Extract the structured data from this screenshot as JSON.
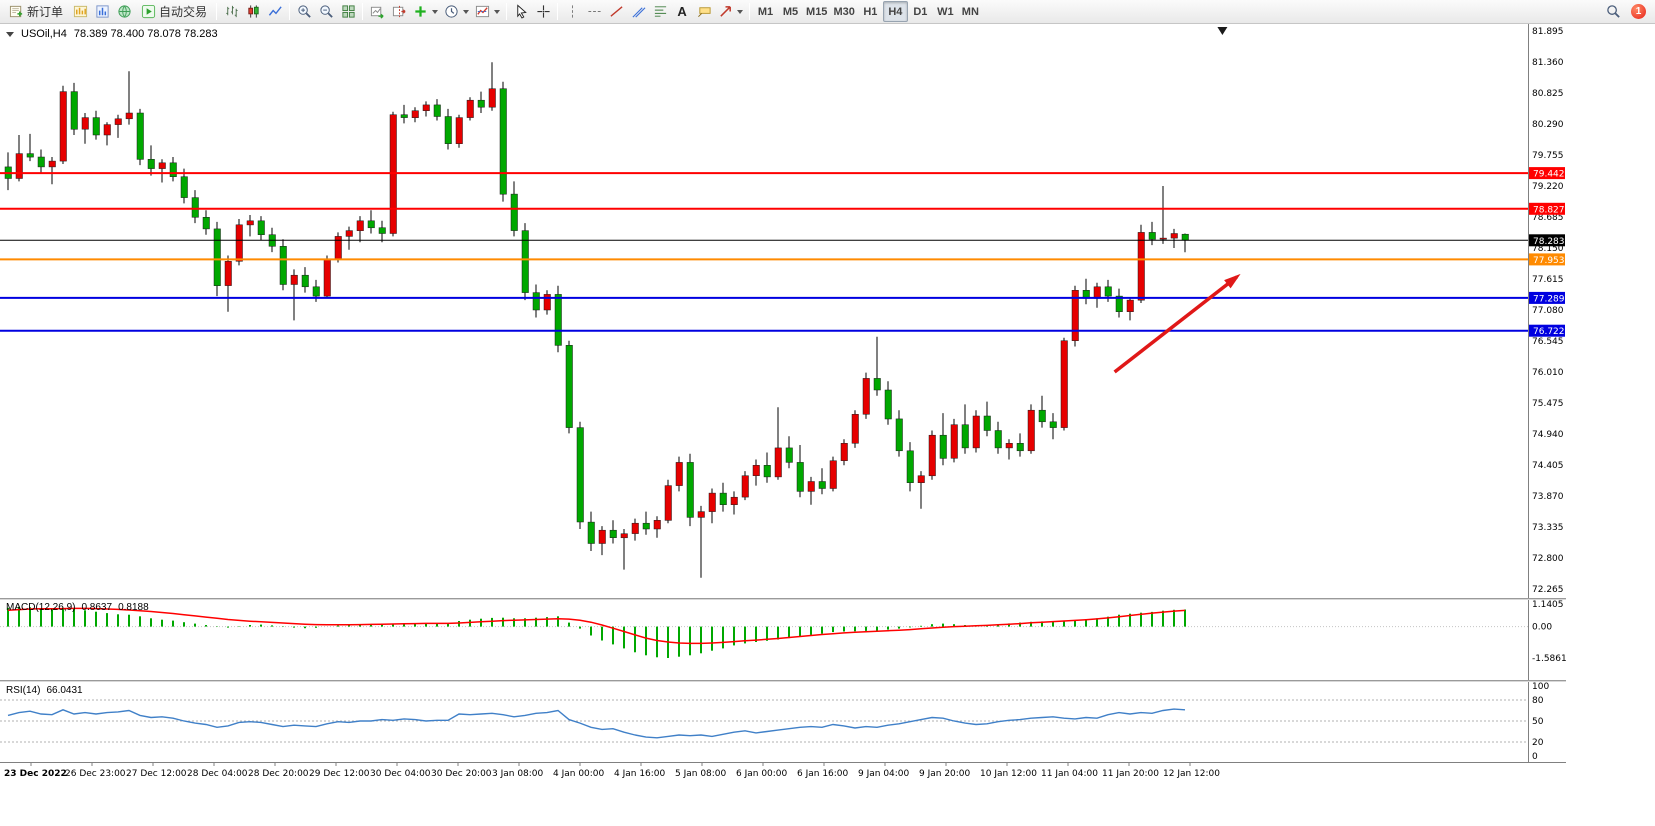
{
  "toolbar": {
    "new_order_label": "新订单",
    "auto_trading_label": "自动交易",
    "text_tool_label": "A",
    "timeframes": [
      "M1",
      "M5",
      "M15",
      "M30",
      "H1",
      "H4",
      "D1",
      "W1",
      "MN"
    ],
    "active_timeframe": "H4",
    "notification_count": "1"
  },
  "chart_header": {
    "symbol_timeframe": "USOil,H4",
    "ohlc_text": "78.389 78.400 78.078 78.283"
  },
  "chart_data": {
    "type": "candlestick",
    "symbol": "USOil",
    "timeframe": "H4",
    "current_bar_ohlc": {
      "open": 78.389,
      "high": 78.4,
      "low": 78.078,
      "close": 78.283
    },
    "colors": {
      "bull": "#e60000",
      "bear": "#00a800",
      "wick": "#000000",
      "macd_histogram": "#00a800",
      "macd_signal": "#ff0000",
      "rsi_line": "#4080c8",
      "line_red": "#ff0000",
      "line_blue": "#0000e0",
      "line_orange": "#ff8a00",
      "current_price_line": "#000000"
    },
    "price_axis_labels": [
      "81.895",
      "81.360",
      "80.825",
      "80.290",
      "79.755",
      "79.220",
      "78.685",
      "78.150",
      "77.615",
      "77.080",
      "76.545",
      "76.010",
      "75.475",
      "74.940",
      "74.405",
      "73.870",
      "73.335",
      "72.800",
      "72.265"
    ],
    "time_axis_labels": [
      "23 Dec 2022",
      "26 Dec 23:00",
      "27 Dec 12:00",
      "28 Dec 04:00",
      "28 Dec 20:00",
      "29 Dec 12:00",
      "30 Dec 04:00",
      "30 Dec 20:00",
      "3 Jan 08:00",
      "4 Jan 00:00",
      "4 Jan 16:00",
      "5 Jan 08:00",
      "6 Jan 00:00",
      "6 Jan 16:00",
      "9 Jan 04:00",
      "9 Jan 20:00",
      "10 Jan 12:00",
      "11 Jan 04:00",
      "11 Jan 20:00",
      "12 Jan 12:00"
    ],
    "horizontal_lines": [
      {
        "price": 79.442,
        "color": "#ff0000",
        "width": 2
      },
      {
        "price": 78.827,
        "color": "#ff0000",
        "width": 2
      },
      {
        "price": 78.283,
        "color": "#000000",
        "width": 1
      },
      {
        "price": 77.953,
        "color": "#ff8a00",
        "width": 2
      },
      {
        "price": 77.289,
        "color": "#0000e0",
        "width": 2
      },
      {
        "price": 76.722,
        "color": "#0000e0",
        "width": 2
      }
    ],
    "price_tags": [
      {
        "value": "79.442",
        "color": "#ff0000"
      },
      {
        "value": "78.827",
        "color": "#ff0000"
      },
      {
        "value": "78.283",
        "color": "#000000"
      },
      {
        "value": "77.953",
        "color": "#ff8a00"
      },
      {
        "value": "77.289",
        "color": "#0000e0"
      },
      {
        "value": "76.722",
        "color": "#0000e0"
      }
    ],
    "arrow_annotation": {
      "from_bar": 100.6,
      "from_price": 76.01,
      "to_bar": 111.7,
      "to_price": 77.65,
      "color": "#e01818"
    },
    "shift_marker_bar": 110.4,
    "candles_ohlc": [
      [
        79.55,
        79.8,
        79.15,
        79.35
      ],
      [
        79.35,
        80.1,
        79.3,
        79.78
      ],
      [
        79.78,
        80.12,
        79.65,
        79.72
      ],
      [
        79.72,
        79.85,
        79.45,
        79.55
      ],
      [
        79.55,
        79.72,
        79.25,
        79.65
      ],
      [
        79.65,
        80.95,
        79.6,
        80.85
      ],
      [
        80.85,
        81.0,
        80.1,
        80.2
      ],
      [
        80.2,
        80.48,
        79.95,
        80.4
      ],
      [
        80.4,
        80.52,
        80.02,
        80.1
      ],
      [
        80.1,
        80.32,
        79.92,
        80.28
      ],
      [
        80.28,
        80.45,
        80.05,
        80.38
      ],
      [
        80.38,
        81.2,
        80.28,
        80.48
      ],
      [
        80.48,
        80.55,
        79.58,
        79.68
      ],
      [
        79.68,
        79.92,
        79.4,
        79.52
      ],
      [
        79.52,
        79.68,
        79.28,
        79.62
      ],
      [
        79.62,
        79.72,
        79.3,
        79.38
      ],
      [
        79.38,
        79.52,
        78.92,
        79.02
      ],
      [
        79.02,
        79.15,
        78.58,
        78.68
      ],
      [
        78.68,
        78.8,
        78.38,
        78.48
      ],
      [
        78.48,
        78.6,
        77.32,
        77.5
      ],
      [
        77.5,
        78.02,
        77.05,
        77.92
      ],
      [
        77.92,
        78.65,
        77.85,
        78.55
      ],
      [
        78.55,
        78.72,
        78.35,
        78.62
      ],
      [
        78.62,
        78.7,
        78.28,
        78.38
      ],
      [
        78.38,
        78.5,
        78.08,
        78.18
      ],
      [
        78.18,
        78.3,
        77.42,
        77.52
      ],
      [
        77.52,
        77.78,
        76.9,
        77.68
      ],
      [
        77.68,
        77.82,
        77.38,
        77.48
      ],
      [
        77.48,
        77.6,
        77.22,
        77.32
      ],
      [
        77.32,
        78.02,
        77.28,
        77.95
      ],
      [
        77.95,
        78.42,
        77.9,
        78.35
      ],
      [
        78.35,
        78.52,
        78.12,
        78.45
      ],
      [
        78.45,
        78.7,
        78.25,
        78.62
      ],
      [
        78.62,
        78.8,
        78.4,
        78.5
      ],
      [
        78.5,
        78.62,
        78.25,
        78.4
      ],
      [
        78.4,
        80.5,
        78.35,
        80.45
      ],
      [
        80.45,
        80.62,
        80.3,
        80.4
      ],
      [
        80.4,
        80.58,
        80.32,
        80.52
      ],
      [
        80.52,
        80.68,
        80.42,
        80.62
      ],
      [
        80.62,
        80.72,
        80.35,
        80.42
      ],
      [
        80.42,
        80.55,
        79.85,
        79.95
      ],
      [
        79.95,
        80.45,
        79.88,
        80.4
      ],
      [
        80.4,
        80.75,
        80.35,
        80.7
      ],
      [
        80.7,
        80.85,
        80.48,
        80.58
      ],
      [
        80.58,
        81.355,
        80.52,
        80.9
      ],
      [
        80.9,
        81.02,
        78.95,
        79.08
      ],
      [
        79.08,
        79.3,
        78.35,
        78.45
      ],
      [
        78.45,
        78.58,
        77.25,
        77.38
      ],
      [
        77.38,
        77.52,
        76.95,
        77.08
      ],
      [
        77.08,
        77.42,
        77.0,
        77.35
      ],
      [
        77.35,
        77.5,
        76.35,
        76.47
      ],
      [
        76.47,
        76.55,
        74.95,
        75.05
      ],
      [
        75.05,
        75.15,
        73.3,
        73.42
      ],
      [
        73.42,
        73.6,
        72.92,
        73.05
      ],
      [
        73.05,
        73.35,
        72.85,
        73.28
      ],
      [
        73.28,
        73.45,
        73.05,
        73.15
      ],
      [
        73.15,
        73.3,
        72.6,
        73.22
      ],
      [
        73.22,
        73.48,
        73.1,
        73.4
      ],
      [
        73.4,
        73.6,
        73.2,
        73.3
      ],
      [
        73.3,
        73.52,
        73.15,
        73.45
      ],
      [
        73.45,
        74.15,
        73.4,
        74.05
      ],
      [
        74.05,
        74.55,
        73.95,
        74.45
      ],
      [
        74.45,
        74.6,
        73.35,
        73.5
      ],
      [
        73.5,
        73.7,
        72.46,
        73.6
      ],
      [
        73.6,
        74.0,
        73.4,
        73.92
      ],
      [
        73.92,
        74.1,
        73.6,
        73.72
      ],
      [
        73.72,
        73.95,
        73.55,
        73.85
      ],
      [
        73.85,
        74.3,
        73.8,
        74.22
      ],
      [
        74.22,
        74.5,
        74.05,
        74.4
      ],
      [
        74.4,
        74.62,
        74.1,
        74.2
      ],
      [
        74.2,
        75.4,
        74.15,
        74.7
      ],
      [
        74.7,
        74.9,
        74.35,
        74.45
      ],
      [
        74.45,
        74.75,
        73.85,
        73.95
      ],
      [
        73.95,
        74.2,
        73.72,
        74.12
      ],
      [
        74.12,
        74.35,
        73.9,
        74.0
      ],
      [
        74.0,
        74.55,
        73.95,
        74.48
      ],
      [
        74.48,
        74.85,
        74.4,
        74.78
      ],
      [
        74.78,
        75.35,
        74.7,
        75.28
      ],
      [
        75.28,
        76.0,
        75.2,
        75.9
      ],
      [
        75.9,
        76.62,
        75.6,
        75.7
      ],
      [
        75.7,
        75.85,
        75.1,
        75.2
      ],
      [
        75.2,
        75.35,
        74.55,
        74.65
      ],
      [
        74.65,
        74.8,
        73.95,
        74.1
      ],
      [
        74.1,
        74.3,
        73.65,
        74.22
      ],
      [
        74.22,
        75.0,
        74.15,
        74.92
      ],
      [
        74.92,
        75.3,
        74.4,
        74.52
      ],
      [
        74.52,
        75.2,
        74.45,
        75.1
      ],
      [
        75.1,
        75.45,
        74.6,
        74.7
      ],
      [
        74.7,
        75.35,
        74.62,
        75.25
      ],
      [
        75.25,
        75.5,
        74.9,
        75.0
      ],
      [
        75.0,
        75.15,
        74.6,
        74.7
      ],
      [
        74.7,
        74.85,
        74.5,
        74.78
      ],
      [
        74.78,
        74.95,
        74.55,
        74.65
      ],
      [
        74.65,
        75.45,
        74.6,
        75.35
      ],
      [
        75.35,
        75.6,
        75.05,
        75.15
      ],
      [
        75.15,
        75.3,
        74.85,
        75.05
      ],
      [
        75.05,
        76.6,
        75.0,
        76.55
      ],
      [
        76.55,
        77.5,
        76.45,
        77.42
      ],
      [
        77.42,
        77.62,
        77.18,
        77.28
      ],
      [
        77.28,
        77.55,
        77.12,
        77.48
      ],
      [
        77.48,
        77.6,
        77.22,
        77.32
      ],
      [
        77.32,
        77.45,
        76.95,
        77.05
      ],
      [
        77.05,
        77.3,
        76.9,
        77.25
      ],
      [
        77.25,
        78.55,
        77.2,
        78.42
      ],
      [
        78.42,
        78.6,
        78.2,
        78.3
      ],
      [
        78.3,
        79.22,
        78.22,
        78.32
      ],
      [
        78.32,
        78.48,
        78.15,
        78.4
      ],
      [
        78.389,
        78.4,
        78.078,
        78.283
      ]
    ],
    "macd": {
      "label": "MACD(12,26,9)",
      "value_main": "0.8637",
      "value_signal": "0.8188",
      "scale_labels": [
        "1.1405",
        "0.00",
        "-1.5861"
      ],
      "scale_max": 1.1405,
      "scale_min": -1.5861,
      "histogram": [
        0.95,
        1.0,
        0.98,
        0.92,
        0.88,
        0.95,
        0.9,
        0.82,
        0.75,
        0.68,
        0.62,
        0.6,
        0.52,
        0.42,
        0.35,
        0.3,
        0.22,
        0.15,
        0.08,
        0.02,
        -0.05,
        0.02,
        0.08,
        0.1,
        0.06,
        -0.02,
        -0.05,
        -0.08,
        -0.06,
        0.0,
        0.05,
        0.08,
        0.1,
        0.12,
        0.14,
        0.15,
        0.17,
        0.18,
        0.16,
        0.15,
        0.14,
        0.28,
        0.35,
        0.4,
        0.44,
        0.45,
        0.42,
        0.42,
        0.45,
        0.48,
        0.52,
        0.2,
        -0.1,
        -0.45,
        -0.7,
        -0.9,
        -1.1,
        -1.3,
        -1.45,
        -1.55,
        -1.586,
        -1.52,
        -1.45,
        -1.35,
        -1.22,
        -1.1,
        -0.95,
        -0.85,
        -0.78,
        -0.72,
        -0.65,
        -0.58,
        -0.5,
        -0.42,
        -0.36,
        -0.28,
        -0.25,
        -0.24,
        -0.22,
        -0.2,
        -0.15,
        -0.1,
        -0.04,
        0.04,
        0.12,
        0.15,
        0.12,
        0.08,
        0.05,
        0.08,
        0.12,
        0.16,
        0.2,
        0.24,
        0.26,
        0.28,
        0.3,
        0.32,
        0.38,
        0.42,
        0.5,
        0.6,
        0.65,
        0.7,
        0.74,
        0.8,
        0.85,
        0.8637
      ],
      "signal": [
        0.82,
        0.86,
        0.89,
        0.9,
        0.9,
        0.91,
        0.92,
        0.92,
        0.91,
        0.89,
        0.87,
        0.84,
        0.8,
        0.76,
        0.71,
        0.66,
        0.6,
        0.54,
        0.48,
        0.42,
        0.36,
        0.31,
        0.27,
        0.24,
        0.21,
        0.18,
        0.15,
        0.12,
        0.1,
        0.09,
        0.09,
        0.09,
        0.1,
        0.11,
        0.12,
        0.13,
        0.14,
        0.15,
        0.16,
        0.16,
        0.16,
        0.18,
        0.21,
        0.24,
        0.27,
        0.3,
        0.32,
        0.34,
        0.36,
        0.38,
        0.4,
        0.38,
        0.32,
        0.22,
        0.08,
        -0.08,
        -0.25,
        -0.42,
        -0.58,
        -0.7,
        -0.78,
        -0.83,
        -0.85,
        -0.85,
        -0.83,
        -0.8,
        -0.76,
        -0.72,
        -0.68,
        -0.64,
        -0.6,
        -0.55,
        -0.5,
        -0.45,
        -0.4,
        -0.36,
        -0.32,
        -0.29,
        -0.26,
        -0.24,
        -0.21,
        -0.18,
        -0.15,
        -0.11,
        -0.07,
        -0.03,
        0.0,
        0.02,
        0.04,
        0.06,
        0.09,
        0.12,
        0.15,
        0.19,
        0.22,
        0.25,
        0.28,
        0.31,
        0.35,
        0.39,
        0.44,
        0.5,
        0.56,
        0.62,
        0.68,
        0.73,
        0.78,
        0.8188
      ]
    },
    "rsi": {
      "label": "RSI(14)",
      "value": "66.0431",
      "levels": [
        80,
        50,
        20
      ],
      "scale_max": 100,
      "scale_min": 0,
      "scale_labels": [
        "100",
        "80",
        "50",
        "20",
        "0"
      ],
      "values": [
        58,
        62,
        64,
        60,
        59,
        66,
        60,
        62,
        60,
        62,
        63,
        65,
        58,
        55,
        56,
        54,
        50,
        47,
        45,
        41,
        43,
        48,
        49,
        48,
        45,
        42,
        44,
        43,
        42,
        46,
        49,
        48,
        50,
        50,
        52,
        51,
        53,
        52,
        50,
        51,
        51,
        60,
        59,
        60,
        61,
        59,
        56,
        58,
        61,
        62,
        65,
        52,
        47,
        41,
        38,
        39,
        34,
        30,
        27,
        26,
        28,
        30,
        29,
        30,
        28,
        31,
        34,
        36,
        33,
        35,
        37,
        39,
        41,
        42,
        41,
        45,
        43,
        40,
        42,
        41,
        44,
        46,
        49,
        52,
        55,
        54,
        50,
        47,
        45,
        46,
        49,
        51,
        52,
        54,
        55,
        56,
        54,
        53,
        55,
        54,
        59,
        62,
        60,
        62,
        61,
        65,
        67,
        66.0431
      ]
    }
  }
}
